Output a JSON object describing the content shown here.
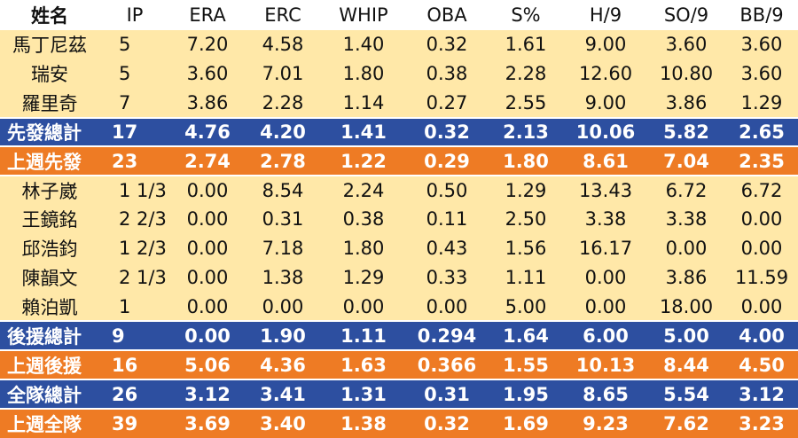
{
  "headers": [
    "姓名",
    "IP",
    "ERA",
    "ERC",
    "WHIP",
    "OBA",
    "S%",
    "H/9",
    "SO/9",
    "BB/9"
  ],
  "rows": [
    {
      "type": "player",
      "cells": [
        "馬丁尼茲",
        "5",
        "7.20",
        "4.58",
        "1.40",
        "0.32",
        "1.61",
        "9.00",
        "3.60",
        "3.60"
      ]
    },
    {
      "type": "player",
      "cells": [
        "瑞安",
        "5",
        "3.60",
        "7.01",
        "1.80",
        "0.38",
        "2.28",
        "12.60",
        "10.80",
        "3.60"
      ]
    },
    {
      "type": "player",
      "cells": [
        "羅里奇",
        "7",
        "3.86",
        "2.28",
        "1.14",
        "0.27",
        "2.55",
        "9.00",
        "3.86",
        "1.29"
      ]
    },
    {
      "type": "total-blue",
      "cells": [
        "先發總計",
        "17",
        "4.76",
        "4.20",
        "1.41",
        "0.32",
        "2.13",
        "10.06",
        "5.82",
        "2.65"
      ]
    },
    {
      "type": "total-orange",
      "cells": [
        "上週先發",
        "23",
        "2.74",
        "2.78",
        "1.22",
        "0.29",
        "1.80",
        "8.61",
        "7.04",
        "2.35"
      ]
    },
    {
      "type": "player",
      "cells": [
        "林子崴",
        "1 1/3",
        "0.00",
        "8.54",
        "2.24",
        "0.50",
        "1.29",
        "13.43",
        "6.72",
        "6.72"
      ]
    },
    {
      "type": "player",
      "cells": [
        "王鏡銘",
        "2 2/3",
        "0.00",
        "0.31",
        "0.38",
        "0.11",
        "2.50",
        "3.38",
        "3.38",
        "0.00"
      ]
    },
    {
      "type": "player",
      "cells": [
        "邱浩鈞",
        "1 2/3",
        "0.00",
        "7.18",
        "1.80",
        "0.43",
        "1.56",
        "16.17",
        "0.00",
        "0.00"
      ]
    },
    {
      "type": "player",
      "cells": [
        "陳韻文",
        "2 1/3",
        "0.00",
        "1.38",
        "1.29",
        "0.33",
        "1.11",
        "0.00",
        "3.86",
        "11.59"
      ]
    },
    {
      "type": "player",
      "cells": [
        "賴泊凱",
        "1",
        "0.00",
        "0.00",
        "0.00",
        "0.00",
        "5.00",
        "0.00",
        "18.00",
        "0.00"
      ]
    },
    {
      "type": "total-blue",
      "cells": [
        "後援總計",
        "9",
        "0.00",
        "1.90",
        "1.11",
        "0.294",
        "1.64",
        "6.00",
        "5.00",
        "4.00"
      ]
    },
    {
      "type": "total-orange",
      "cells": [
        "上週後援",
        "16",
        "5.06",
        "4.36",
        "1.63",
        "0.366",
        "1.55",
        "10.13",
        "8.44",
        "4.50"
      ]
    },
    {
      "type": "total-blue",
      "cells": [
        "全隊總計",
        "26",
        "3.12",
        "3.41",
        "1.31",
        "0.31",
        "1.95",
        "8.65",
        "5.54",
        "3.12"
      ]
    },
    {
      "type": "total-orange",
      "cells": [
        "上週全隊",
        "39",
        "3.69",
        "3.40",
        "1.38",
        "0.32",
        "1.69",
        "9.23",
        "7.62",
        "3.23"
      ]
    }
  ],
  "colors": {
    "player_row_bg": "#ffe8a8",
    "total_blue_bg": "#2d4fa0",
    "total_orange_bg": "#ee7b24"
  }
}
